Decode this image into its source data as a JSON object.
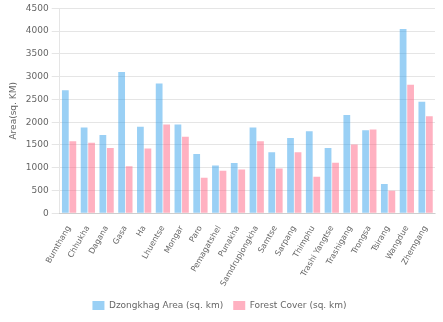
{
  "chart_data": {
    "type": "bar",
    "categories": [
      "Bumthang",
      "Chhukha",
      "Dagana",
      "Gasa",
      "Ha",
      "Lhuentse",
      "Mongar",
      "Paro",
      "Pemagatshel",
      "Punakha",
      "Samdrupjongkha",
      "Samtse",
      "Sarpang",
      "Thimphu",
      "Trashi Yangtse",
      "Trashigang",
      "Trongsa",
      "Tsirang",
      "Wangdue",
      "Zhemgang"
    ],
    "series": [
      {
        "name": "Dzongkhag Area (sq. km)",
        "values": [
          2700,
          1880,
          1720,
          3100,
          1900,
          2850,
          1950,
          1300,
          1050,
          1100,
          1880,
          1340,
          1650,
          1800,
          1430,
          2160,
          1820,
          640,
          4050,
          2450
        ]
      },
      {
        "name": "Forest Cover (sq. km)",
        "values": [
          1580,
          1550,
          1430,
          1030,
          1420,
          1950,
          1680,
          780,
          930,
          960,
          1580,
          980,
          1340,
          800,
          1110,
          1510,
          1840,
          490,
          2820,
          2130
        ]
      }
    ],
    "ylabel": "Area(sq. KM)",
    "ylim": [
      0,
      4500
    ],
    "yticks": [
      0,
      500,
      1000,
      1500,
      2000,
      2500,
      3000,
      3500,
      4000,
      4500
    ],
    "grid": true,
    "legend": "bottom"
  }
}
